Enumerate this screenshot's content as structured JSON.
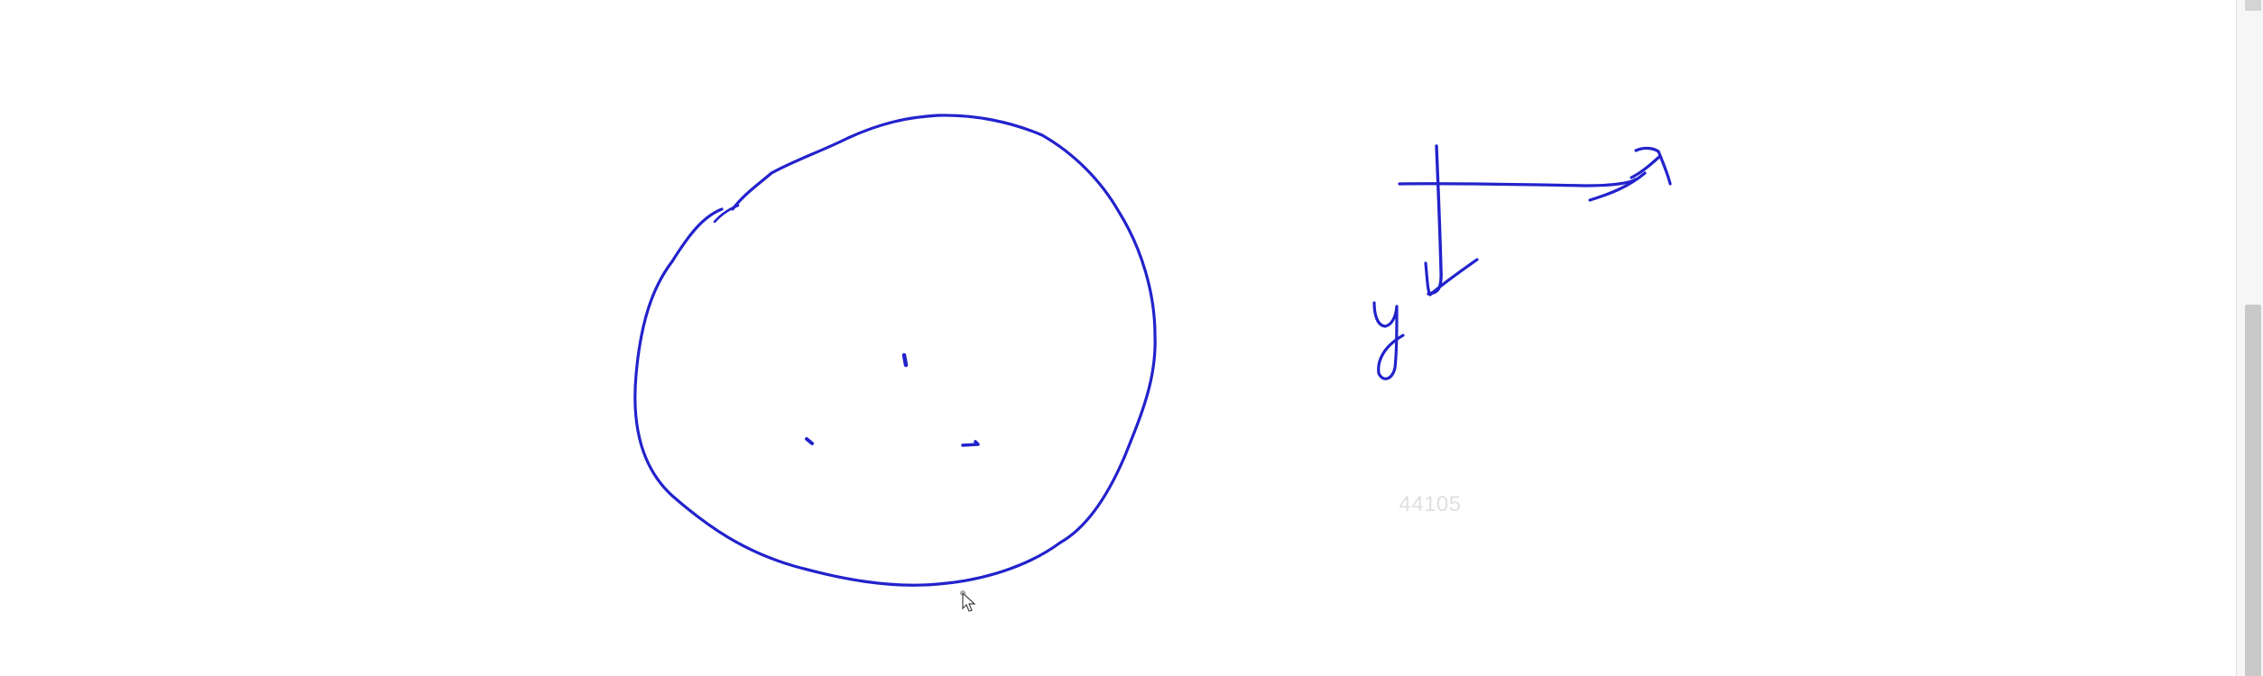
{
  "ink_color": "#2222cc",
  "labels": {
    "x_axis": "x",
    "y_axis": "y"
  },
  "page_number": "44105",
  "cursor_icon": "pen-cursor-icon",
  "scrollbar": {
    "thumb_color": "#c9c9c9",
    "track_color": "#f6f6f6"
  }
}
